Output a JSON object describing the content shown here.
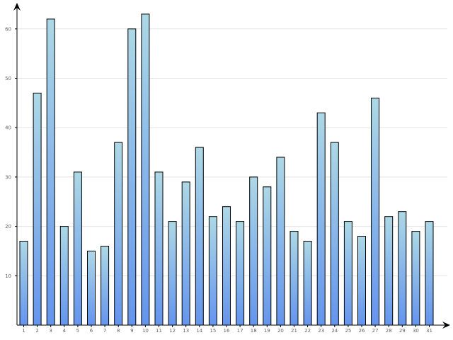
{
  "chart_data": {
    "type": "bar",
    "title": "",
    "xlabel": "",
    "ylabel": "",
    "categories": [
      "1",
      "2",
      "3",
      "4",
      "5",
      "6",
      "7",
      "8",
      "9",
      "10",
      "11",
      "12",
      "13",
      "14",
      "15",
      "16",
      "17",
      "18",
      "19",
      "20",
      "21",
      "22",
      "23",
      "24",
      "25",
      "26",
      "27",
      "28",
      "29",
      "30",
      "31"
    ],
    "values": [
      17,
      47,
      62,
      20,
      31,
      15,
      16,
      37,
      60,
      63,
      31,
      21,
      29,
      36,
      22,
      24,
      21,
      30,
      28,
      34,
      19,
      17,
      43,
      37,
      21,
      18,
      46,
      22,
      23,
      19,
      21
    ],
    "y_ticks": [
      "10",
      "20",
      "30",
      "40",
      "50",
      "60"
    ],
    "ylim": [
      0,
      65.5
    ],
    "grid": true,
    "legend": "none",
    "colors": {
      "bar_top": "#add8e6",
      "bar_bottom": "#6495ed",
      "bar_stroke": "#000000",
      "grid": "#e3e3e3",
      "axis": "#000000",
      "tick_text": "#666666"
    }
  }
}
